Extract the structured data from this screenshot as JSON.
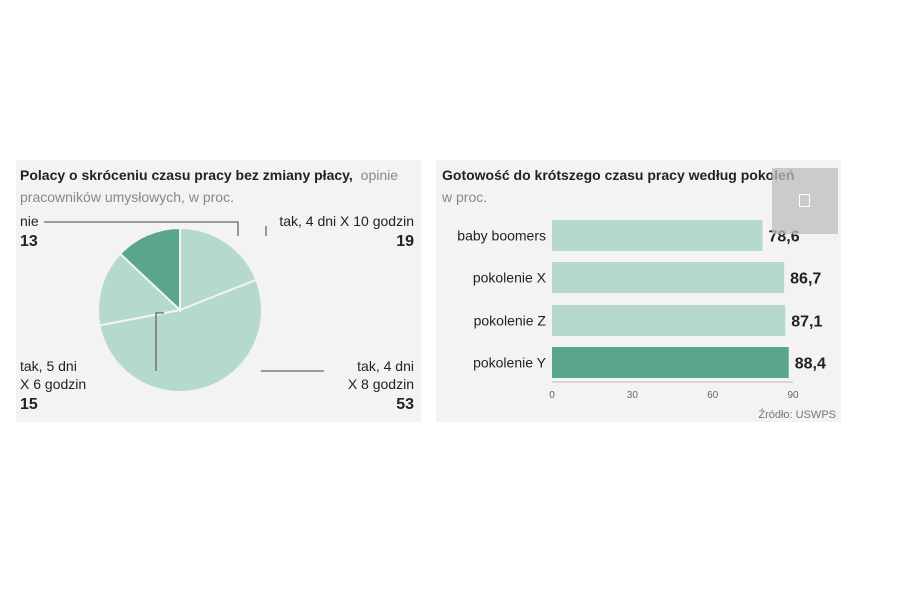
{
  "chart_data": [
    {
      "type": "pie",
      "title": "Polacy o skróceniu czasu pracy  bez zmiany płacy,",
      "subtitle_inline": "opinie",
      "subtitle": "pracowników umysłowych, w proc.",
      "slices": [
        {
          "label_lines": [
            "tak, 4 dni X 10 godzin"
          ],
          "value": 19,
          "color": "#b5d9cc"
        },
        {
          "label_lines": [
            "tak, 4 dni",
            "X 8 godzin"
          ],
          "value": 53,
          "color": "#b5d9cc"
        },
        {
          "label_lines": [
            "tak, 5 dni",
            "X 6 godzin"
          ],
          "value": 15,
          "color": "#b5d9cc"
        },
        {
          "label_lines": [
            "nie"
          ],
          "value": 13,
          "color": "#5aa68c"
        }
      ]
    },
    {
      "type": "bar",
      "orientation": "horizontal",
      "title": "Gotowość do krótszego czasu pracy według pokoleń",
      "subtitle": "w proc.",
      "categories": [
        "baby boomers",
        "pokolenie X",
        "pokolenie Z",
        "pokolenie Y"
      ],
      "values": [
        78.6,
        86.7,
        87.1,
        88.4
      ],
      "value_labels": [
        "78,6",
        "86,7",
        "87,1",
        "88,4"
      ],
      "colors": [
        "#b5d9cc",
        "#b5d9cc",
        "#b5d9cc",
        "#5aa68c"
      ],
      "xlim": [
        0,
        90
      ],
      "xticks": [
        "0",
        "30",
        "60",
        "90"
      ],
      "source": "Źródło: USWPS"
    }
  ]
}
